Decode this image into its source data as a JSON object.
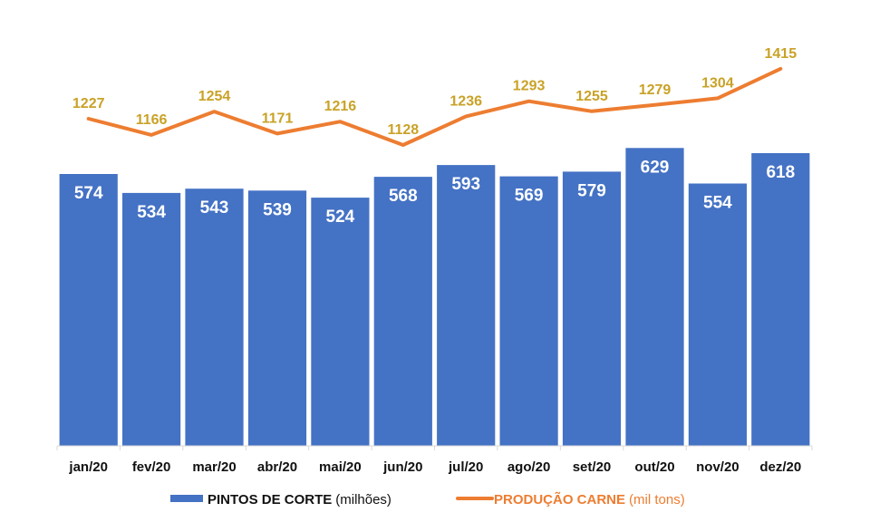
{
  "chart_data": {
    "type": "bar",
    "title": "",
    "xlabel": "",
    "ylabel": "",
    "categories": [
      "jan/20",
      "fev/20",
      "mar/20",
      "abr/20",
      "mai/20",
      "jun/20",
      "jul/20",
      "ago/20",
      "set/20",
      "out/20",
      "nov/20",
      "dez/20"
    ],
    "series": [
      {
        "name": "PINTOS DE CORTE",
        "unit": "(milhões)",
        "type": "bar",
        "axis": "primary",
        "color": "#4472c4",
        "values": [
          574,
          534,
          543,
          539,
          524,
          568,
          593,
          569,
          579,
          629,
          554,
          618
        ]
      },
      {
        "name": "PRODUÇÃO CARNE",
        "unit": "(mil tons)",
        "type": "line",
        "axis": "secondary",
        "color": "#ed7d31",
        "label_color": "#c9a227",
        "values": [
          1227,
          1166,
          1254,
          1171,
          1216,
          1128,
          1236,
          1293,
          1255,
          1279,
          1304,
          1415
        ]
      }
    ],
    "ylim": [
      0,
      900
    ],
    "y2lim": [
      600,
      1700
    ],
    "grid": false,
    "legend_position": "bottom"
  }
}
